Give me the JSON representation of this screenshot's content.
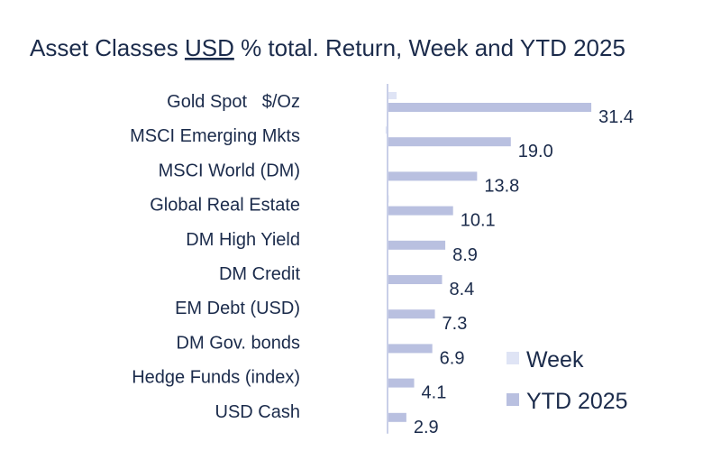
{
  "chart_data": {
    "type": "bar",
    "orientation": "horizontal",
    "title": "Asset Classes USD % total. Return, Week and YTD 2025",
    "title_parts": [
      "Asset Classes ",
      "USD",
      " % total. Return, Week and YTD 2025"
    ],
    "categories": [
      "Gold Spot   $/Oz",
      "MSCI Emerging Mkts",
      "MSCI World (DM)",
      "Global Real Estate",
      "DM High Yield",
      "DM Credit",
      "EM Debt (USD)",
      "DM Gov. bonds",
      "Hedge Funds (index)",
      "USD Cash"
    ],
    "series": [
      {
        "name": "Week",
        "values": [
          1.4,
          -0.3,
          0.1,
          0.2,
          0.1,
          0.1,
          0.1,
          0.1,
          0.1,
          0.1
        ],
        "color": "#dfe4f5"
      },
      {
        "name": "YTD 2025",
        "values": [
          31.4,
          19.0,
          13.8,
          10.1,
          8.9,
          8.4,
          7.3,
          6.9,
          4.1,
          2.9
        ],
        "color": "#b9c0e0"
      }
    ],
    "data_labels": [
      "31.4",
      "19.0",
      "13.8",
      "10.1",
      "8.9",
      "8.4",
      "7.3",
      "6.9",
      "4.1",
      "2.9"
    ],
    "xlim": [
      -0.5,
      31.4
    ],
    "axis_color": "#c9cfe8",
    "legend": {
      "position": "bottom-right",
      "entries": [
        "Week",
        "YTD 2025"
      ]
    },
    "grid": false
  }
}
